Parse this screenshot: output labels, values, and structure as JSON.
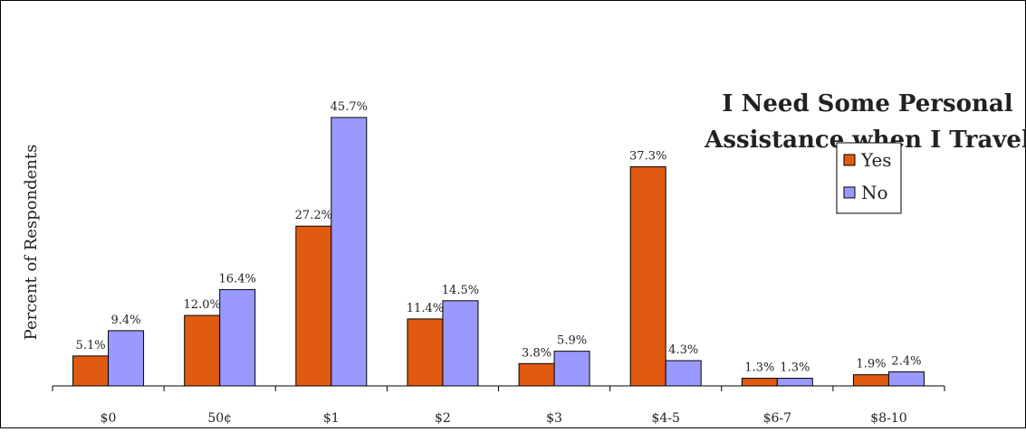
{
  "chart_data": {
    "type": "bar",
    "title_line1": "I Need Some Personal",
    "title_line2": "Assistance when I Travel",
    "ylabel": "Percent of Respondents",
    "xlabel": "",
    "categories": [
      "$0",
      "50¢",
      "$1",
      "$2",
      "$3",
      "$4-5",
      "$6-7",
      "$8-10"
    ],
    "series": [
      {
        "name": "Yes",
        "color": "#e05a10",
        "values": [
          5.1,
          12.0,
          27.2,
          11.4,
          3.8,
          37.3,
          1.3,
          1.9
        ],
        "labels": [
          "5.1%",
          "12.0%",
          "27.2%",
          "11.4%",
          "3.8%",
          "37.3%",
          "1.3%",
          "1.9%"
        ]
      },
      {
        "name": "No",
        "color": "#9999ff",
        "values": [
          9.4,
          16.4,
          45.7,
          14.5,
          5.9,
          4.3,
          1.3,
          2.4
        ],
        "labels": [
          "9.4%",
          "16.4%",
          "45.7%",
          "14.5%",
          "5.9%",
          "4.3%",
          "1.3%",
          "2.4%"
        ]
      }
    ],
    "ylim": [
      0,
      45.7
    ],
    "grid": false,
    "legend_position": "right"
  }
}
